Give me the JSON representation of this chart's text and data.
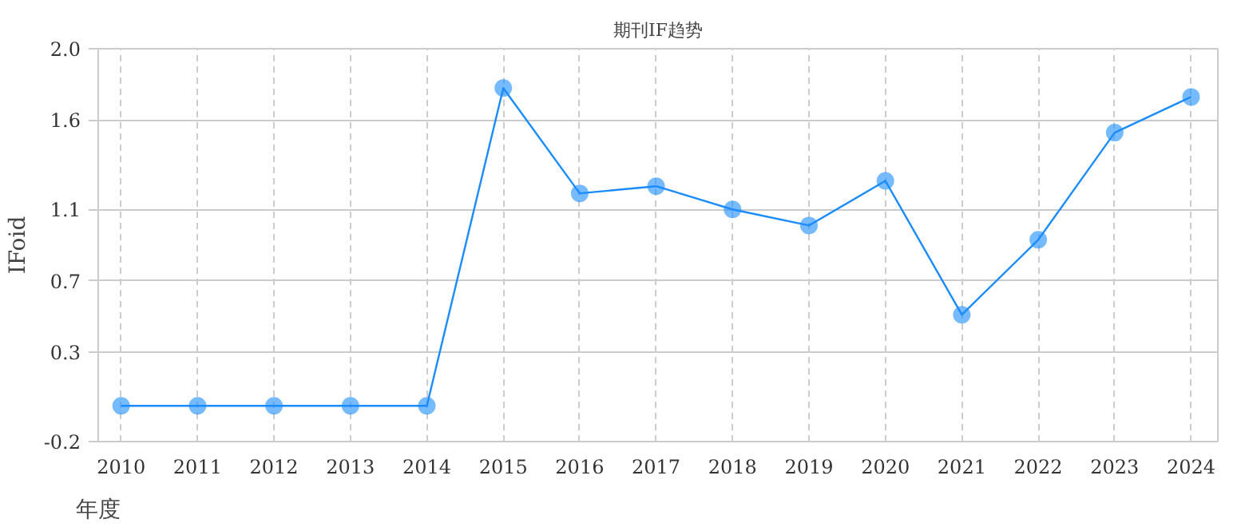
{
  "chart_data": {
    "type": "line",
    "title": "期刊IF趋势",
    "xlabel": "年度",
    "ylabel": "IFoid",
    "categories": [
      "2010",
      "2011",
      "2012",
      "2013",
      "2014",
      "2015",
      "2016",
      "2017",
      "2018",
      "2019",
      "2020",
      "2021",
      "2022",
      "2023",
      "2024"
    ],
    "series": [
      {
        "color": "#1a8cff",
        "values": [
          0,
          0,
          0,
          0,
          0,
          1.78,
          1.19,
          1.23,
          1.1,
          1.01,
          1.26,
          0.51,
          0.93,
          1.53,
          1.73
        ]
      }
    ],
    "ylim": [
      -0.2,
      2.0
    ],
    "yticks": [
      -0.2,
      0.3,
      0.7,
      1.1,
      1.6,
      {
        "value": 2.0,
        "label": "2.0"
      }
    ],
    "grid": true,
    "marker": "circle",
    "line_style": "solid"
  }
}
